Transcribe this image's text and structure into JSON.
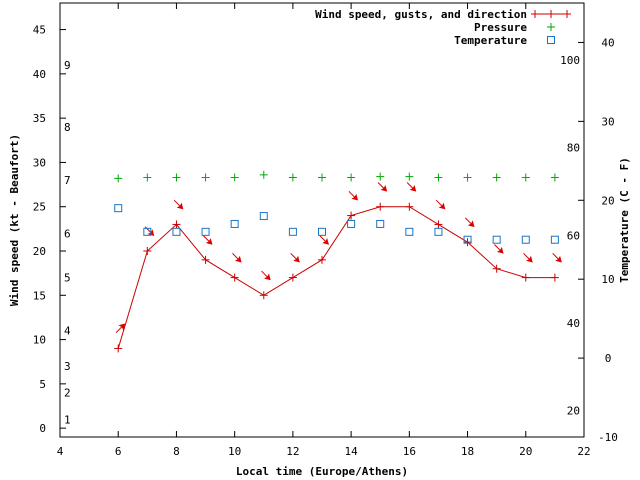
{
  "chart_data": {
    "type": "line",
    "x_axis": {
      "label": "Local time (Europe/Athens)",
      "range": [
        4,
        22
      ],
      "ticks": [
        "4",
        "6",
        "8",
        "10",
        "12",
        "14",
        "16",
        "18",
        "20",
        "22"
      ]
    },
    "y_axis_left": {
      "label": "Wind speed (kt - Beaufort)",
      "range": [
        -1,
        48
      ],
      "ticks": [
        "0",
        "5",
        "10",
        "15",
        "20",
        "25",
        "30",
        "35",
        "40",
        "45"
      ],
      "beaufort_labels": [
        "1",
        "2",
        "3",
        "4",
        "5",
        "6",
        "7",
        "8",
        "9"
      ]
    },
    "y_axis_right": {
      "label": "Temperature (C - F)",
      "range_celsius": [
        -10,
        45
      ],
      "celsius_ticks": [
        "-10",
        "0",
        "10",
        "20",
        "30",
        "40"
      ],
      "fahrenheit_ticks": [
        "20",
        "40",
        "60",
        "80",
        "100"
      ]
    },
    "legend": {
      "position": "top-right",
      "entries": [
        "Wind speed, gusts, and direction",
        "Pressure",
        "Temperature"
      ]
    },
    "colors": {
      "wind": "#cc0000",
      "direction_arrow": "#dd0000",
      "pressure": "#00aa00",
      "temperature": "#1a75c9",
      "frame": "#000000"
    },
    "series": [
      {
        "name": "Wind speed, gusts, and direction",
        "x": [
          6,
          7,
          8,
          9,
          10,
          11,
          12,
          13,
          14,
          15,
          16,
          17,
          18,
          19,
          20,
          21
        ],
        "y": [
          9,
          20,
          23,
          19,
          17,
          15,
          17,
          19,
          24,
          25,
          25,
          23,
          21,
          18,
          17,
          17
        ],
        "direction_deg": [
          225,
          315,
          315,
          315,
          315,
          315,
          315,
          315,
          315,
          315,
          315,
          315,
          315,
          315,
          315,
          315
        ]
      },
      {
        "name": "Pressure",
        "x": [
          6,
          7,
          8,
          9,
          10,
          11,
          12,
          13,
          14,
          15,
          16,
          17,
          18,
          19,
          20,
          21
        ],
        "y": [
          28.2,
          28.3,
          28.3,
          28.3,
          28.3,
          28.6,
          28.3,
          28.3,
          28.3,
          28.4,
          28.4,
          28.3,
          28.3,
          28.3,
          28.3,
          28.3
        ]
      },
      {
        "name": "Temperature",
        "x": [
          6,
          7,
          8,
          9,
          10,
          11,
          12,
          13,
          14,
          15,
          16,
          17,
          18,
          19,
          20,
          21
        ],
        "y": [
          19,
          16,
          16,
          16,
          17,
          18,
          16,
          16,
          17,
          17,
          16,
          16,
          15,
          15,
          15,
          15
        ]
      }
    ]
  }
}
